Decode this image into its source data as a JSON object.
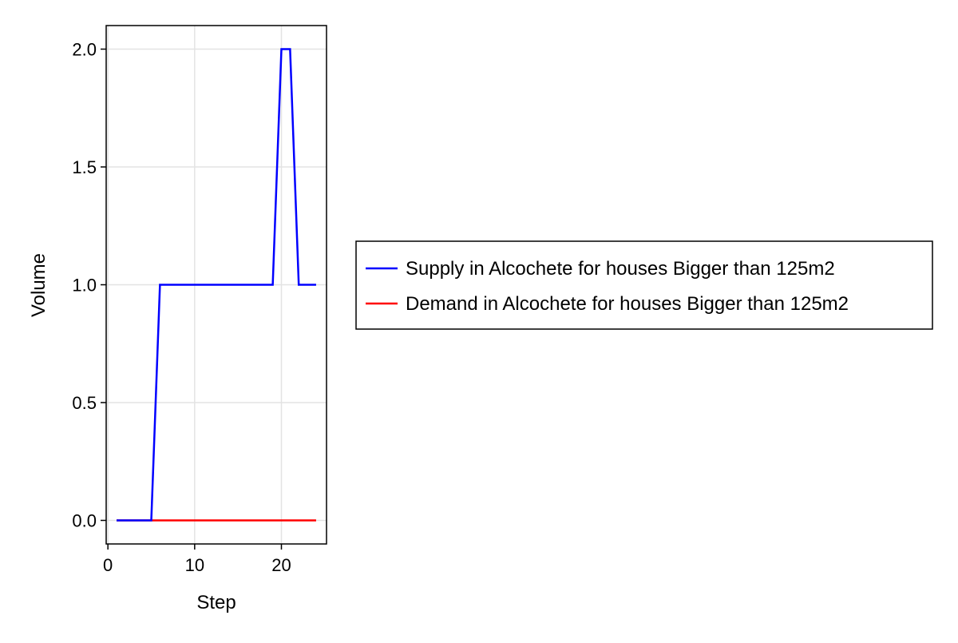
{
  "chart_data": {
    "type": "line",
    "title": "",
    "xlabel": "Step",
    "ylabel": "Volume",
    "xlim": [
      -0.2,
      25.2
    ],
    "ylim": [
      -0.1,
      2.1
    ],
    "xticks": [
      0,
      10,
      20
    ],
    "xtick_labels": [
      "0",
      "10",
      "20"
    ],
    "yticks": [
      0.0,
      0.5,
      1.0,
      1.5,
      2.0
    ],
    "ytick_labels": [
      "0.0",
      "0.5",
      "1.0",
      "1.5",
      "2.0"
    ],
    "grid": true,
    "legend_position": "right",
    "series": [
      {
        "name": "Supply in Alcochete for houses Bigger than 125m2",
        "color": "#0000ff",
        "x": [
          1,
          2,
          3,
          4,
          5,
          6,
          7,
          8,
          9,
          10,
          11,
          12,
          13,
          14,
          15,
          16,
          17,
          18,
          19,
          20,
          21,
          22,
          23,
          24
        ],
        "y": [
          0,
          0,
          0,
          0,
          0,
          1,
          1,
          1,
          1,
          1,
          1,
          1,
          1,
          1,
          1,
          1,
          1,
          1,
          1,
          2,
          2,
          1,
          1,
          1
        ]
      },
      {
        "name": "Demand in Alcochete for houses Bigger than 125m2",
        "color": "#ff0000",
        "x": [
          1,
          2,
          3,
          4,
          5,
          6,
          7,
          8,
          9,
          10,
          11,
          12,
          13,
          14,
          15,
          16,
          17,
          18,
          19,
          20,
          21,
          22,
          23,
          24
        ],
        "y": [
          0,
          0,
          0,
          0,
          0,
          0,
          0,
          0,
          0,
          0,
          0,
          0,
          0,
          0,
          0,
          0,
          0,
          0,
          0,
          0,
          0,
          0,
          0,
          0
        ]
      }
    ]
  }
}
